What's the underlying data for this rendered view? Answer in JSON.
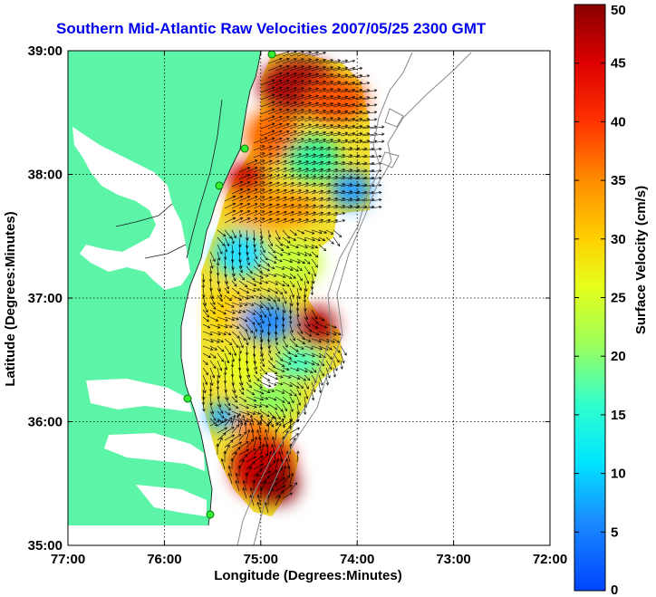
{
  "title": "Southern Mid-Atlantic Raw Velocities 2007/05/25 2300 GMT",
  "x_axis": {
    "label": "Longitude (Degrees:Minutes)",
    "ticks": [
      "77:00",
      "76:00",
      "75:00",
      "74:00",
      "73:00",
      "72:00"
    ]
  },
  "y_axis": {
    "label": "Latitude (Degrees:Minutes)",
    "ticks": [
      "39:00",
      "38:00",
      "37:00",
      "36:00",
      "35:00"
    ]
  },
  "colorbar": {
    "label": "Surface Velocity (cm/s)",
    "ticks": [
      "0",
      "5",
      "10",
      "15",
      "20",
      "25",
      "30",
      "35",
      "40",
      "45",
      "50"
    ],
    "min": 0,
    "max": 50
  },
  "colors": {
    "land": "#5cf5a8",
    "title": "#0000ee",
    "grid": "#000000",
    "bathymetry": "#8a8a8a"
  },
  "stations_count_shown": 5
}
